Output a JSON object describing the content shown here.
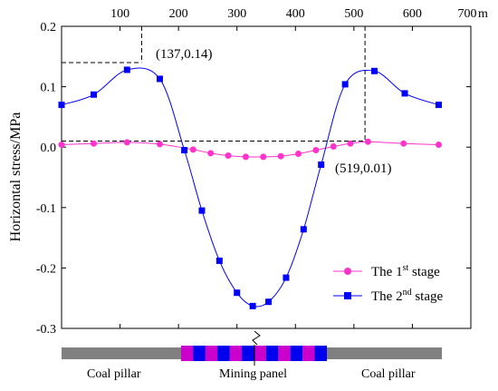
{
  "chart_data": {
    "type": "line",
    "ylabel": "Horizontal stress/MPa",
    "x_unit": "m",
    "xlim": [
      0,
      700
    ],
    "ylim": [
      -0.3,
      0.2
    ],
    "x_ticks": [
      100,
      200,
      300,
      400,
      500,
      600,
      700
    ],
    "x_tick_labels": [
      "100",
      "200",
      "300",
      "400",
      "500",
      "600",
      "700"
    ],
    "y_ticks": [
      0.2,
      0.1,
      0.0,
      -0.1,
      -0.2,
      -0.3
    ],
    "y_tick_labels": [
      "0.2",
      "0.1",
      "0.0",
      "-0.1",
      "-0.2",
      "-0.3"
    ],
    "grid": false,
    "legend_position": "bottom-right",
    "series": [
      {
        "name": "The 1st stage",
        "name_base": "The 1",
        "name_sup": "st",
        "name_tail": " stage",
        "color": "#ff33cc",
        "marker": "circle",
        "x": [
          0,
          55,
          112,
          168,
          225,
          255,
          285,
          315,
          345,
          375,
          405,
          435,
          465,
          494,
          524,
          585,
          645
        ],
        "y": [
          0.004,
          0.006,
          0.008,
          0.005,
          -0.004,
          -0.01,
          -0.014,
          -0.016,
          -0.016,
          -0.015,
          -0.011,
          -0.005,
          0.001,
          0.006,
          0.009,
          0.006,
          0.004
        ]
      },
      {
        "name": "The 2nd stage",
        "name_base": "The 2",
        "name_sup": "nd",
        "name_tail": " stage",
        "color": "#0000ff",
        "marker": "square",
        "x": [
          0,
          55,
          112,
          168,
          210,
          240,
          270,
          300,
          327,
          354,
          384,
          414,
          444,
          485,
          535,
          587,
          645
        ],
        "y": [
          0.07,
          0.087,
          0.128,
          0.113,
          -0.005,
          -0.105,
          -0.188,
          -0.241,
          -0.263,
          -0.256,
          -0.216,
          -0.136,
          -0.029,
          0.104,
          0.126,
          0.089,
          0.07
        ]
      }
    ],
    "annotations": [
      {
        "text": "(137,0.14)",
        "x": 137,
        "y": 0.14
      },
      {
        "text": "(519,0.01)",
        "x": 519,
        "y": 0.01
      }
    ],
    "strip_labels": [
      "Coal pillar",
      "Mining panel",
      "Coal pillar"
    ]
  }
}
